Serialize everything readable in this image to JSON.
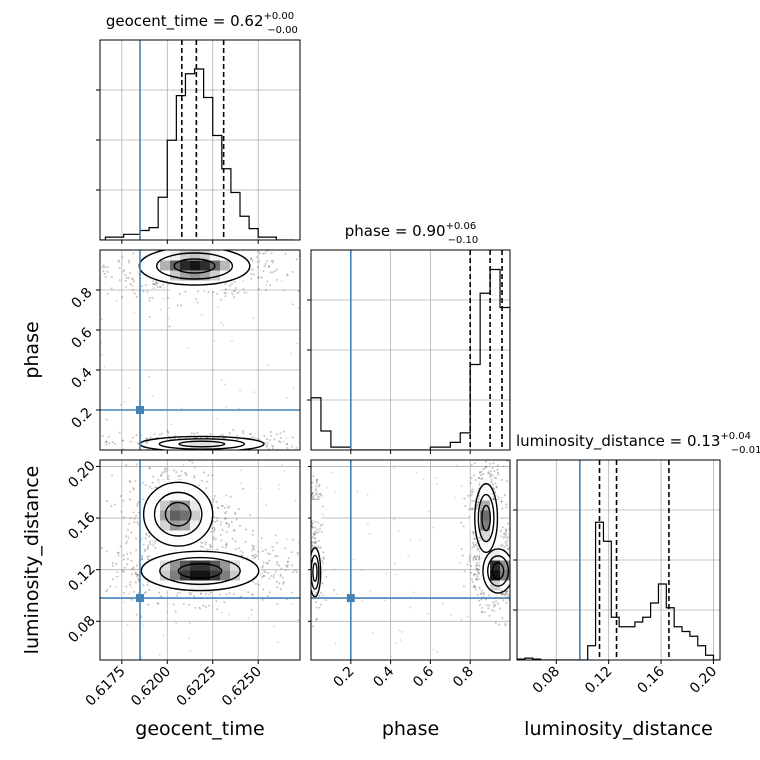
{
  "chart_data": {
    "type": "corner",
    "parameters": [
      "geocent_time",
      "phase",
      "luminosity_distance"
    ],
    "axis_labels": [
      "geocent_time",
      "phase",
      "luminosity_distance"
    ],
    "truths": {
      "geocent_time": 0.6185,
      "phase": 0.2,
      "luminosity_distance": 0.098
    },
    "truth_color": "#4682b4",
    "ranges": {
      "geocent_time": [
        0.6163,
        0.6273
      ],
      "phase": [
        0.0,
        1.0
      ],
      "luminosity_distance": [
        0.05,
        0.205
      ]
    },
    "ticks": {
      "geocent_time": [
        0.6175,
        0.62,
        0.6225,
        0.625
      ],
      "phase": [
        0.2,
        0.4,
        0.6,
        0.8
      ],
      "luminosity_distance": [
        0.08,
        0.12,
        0.16,
        0.2
      ]
    },
    "tick_labels": {
      "geocent_time": [
        "0.6175",
        "0.6200",
        "0.6225",
        "0.6250"
      ],
      "phase_x": [
        "0.2",
        "0.4",
        "0.6",
        "0.8"
      ],
      "phase_y": [
        "0.2",
        "0.4",
        "0.6",
        "0.8"
      ],
      "luminosity_distance_x": [
        "0.08",
        "0.12",
        "0.16",
        "0.20"
      ],
      "luminosity_distance_y": [
        "0.08",
        "0.12",
        "0.16",
        "0.20"
      ]
    },
    "marginals": [
      {
        "parameter": "geocent_time",
        "title_main": "geocent_time = 0.62",
        "title_sup": "+0.00",
        "title_sub": "−0.00",
        "quantiles": [
          0.6208,
          0.6216,
          0.6231
        ],
        "bin_edges": [
          0.6163,
          0.6166,
          0.6176,
          0.6185,
          0.619,
          0.6195,
          0.62,
          0.6205,
          0.621,
          0.6215,
          0.622,
          0.6225,
          0.623,
          0.6235,
          0.624,
          0.6245,
          0.625,
          0.626,
          0.627
        ],
        "counts": [
          0,
          3,
          6,
          10,
          13,
          45,
          105,
          152,
          175,
          180,
          150,
          110,
          75,
          50,
          25,
          12,
          3,
          0
        ],
        "ymax": 200
      },
      {
        "parameter": "phase",
        "title_main": "phase = 0.90",
        "title_sup": "+0.06",
        "title_sub": "−0.10",
        "quantiles": [
          0.8,
          0.9,
          0.96
        ],
        "bin_edges": [
          0.0,
          0.05,
          0.1,
          0.2,
          0.6,
          0.7,
          0.75,
          0.8,
          0.85,
          0.9,
          0.95,
          1.0
        ],
        "counts": [
          55,
          20,
          3,
          0,
          3,
          8,
          18,
          90,
          165,
          190,
          150
        ],
        "ymax": 200
      },
      {
        "parameter": "luminosity_distance",
        "title_main": "luminosity_distance = 0.13",
        "title_sup": "+0.04",
        "title_sub": "−0.01",
        "quantiles": [
          0.113,
          0.126,
          0.166
        ],
        "bin_edges": [
          0.05,
          0.056,
          0.062,
          0.068,
          0.074,
          0.08,
          0.086,
          0.092,
          0.098,
          0.104,
          0.11,
          0.116,
          0.122,
          0.128,
          0.134,
          0.14,
          0.146,
          0.152,
          0.158,
          0.164,
          0.17,
          0.176,
          0.182,
          0.188,
          0.194,
          0.2,
          0.205
        ],
        "counts": [
          1,
          2,
          1,
          0,
          0,
          0,
          0,
          0,
          0,
          15,
          145,
          125,
          45,
          35,
          35,
          40,
          45,
          60,
          80,
          55,
          35,
          30,
          25,
          15,
          5,
          0
        ],
        "ymax": 200
      }
    ],
    "joint": [
      {
        "x": "geocent_time",
        "y": "phase",
        "density_peaks": [
          {
            "x": 0.6215,
            "y": 0.92,
            "sx": 0.0016,
            "sy": 0.05,
            "w": 1.0
          },
          {
            "x": 0.6219,
            "y": 0.03,
            "sx": 0.0018,
            "sy": 0.02,
            "w": 0.5
          }
        ]
      },
      {
        "x": "geocent_time",
        "y": "luminosity_distance",
        "density_peaks": [
          {
            "x": 0.6218,
            "y": 0.119,
            "sx": 0.0017,
            "sy": 0.008,
            "w": 1.0
          },
          {
            "x": 0.6206,
            "y": 0.163,
            "sx": 0.001,
            "sy": 0.013,
            "w": 0.75
          }
        ]
      },
      {
        "x": "phase",
        "y": "luminosity_distance",
        "density_peaks": [
          {
            "x": 0.94,
            "y": 0.119,
            "sx": 0.04,
            "sy": 0.009,
            "w": 1.0
          },
          {
            "x": 0.88,
            "y": 0.16,
            "sx": 0.03,
            "sy": 0.014,
            "w": 0.7
          },
          {
            "x": 0.02,
            "y": 0.118,
            "sx": 0.015,
            "sy": 0.01,
            "w": 0.3
          },
          {
            "x": 0.02,
            "y": 0.163,
            "sx": 0.01,
            "sy": 0.008,
            "w": 0.2
          }
        ]
      }
    ],
    "grid": true,
    "hist_color": "#000000"
  }
}
